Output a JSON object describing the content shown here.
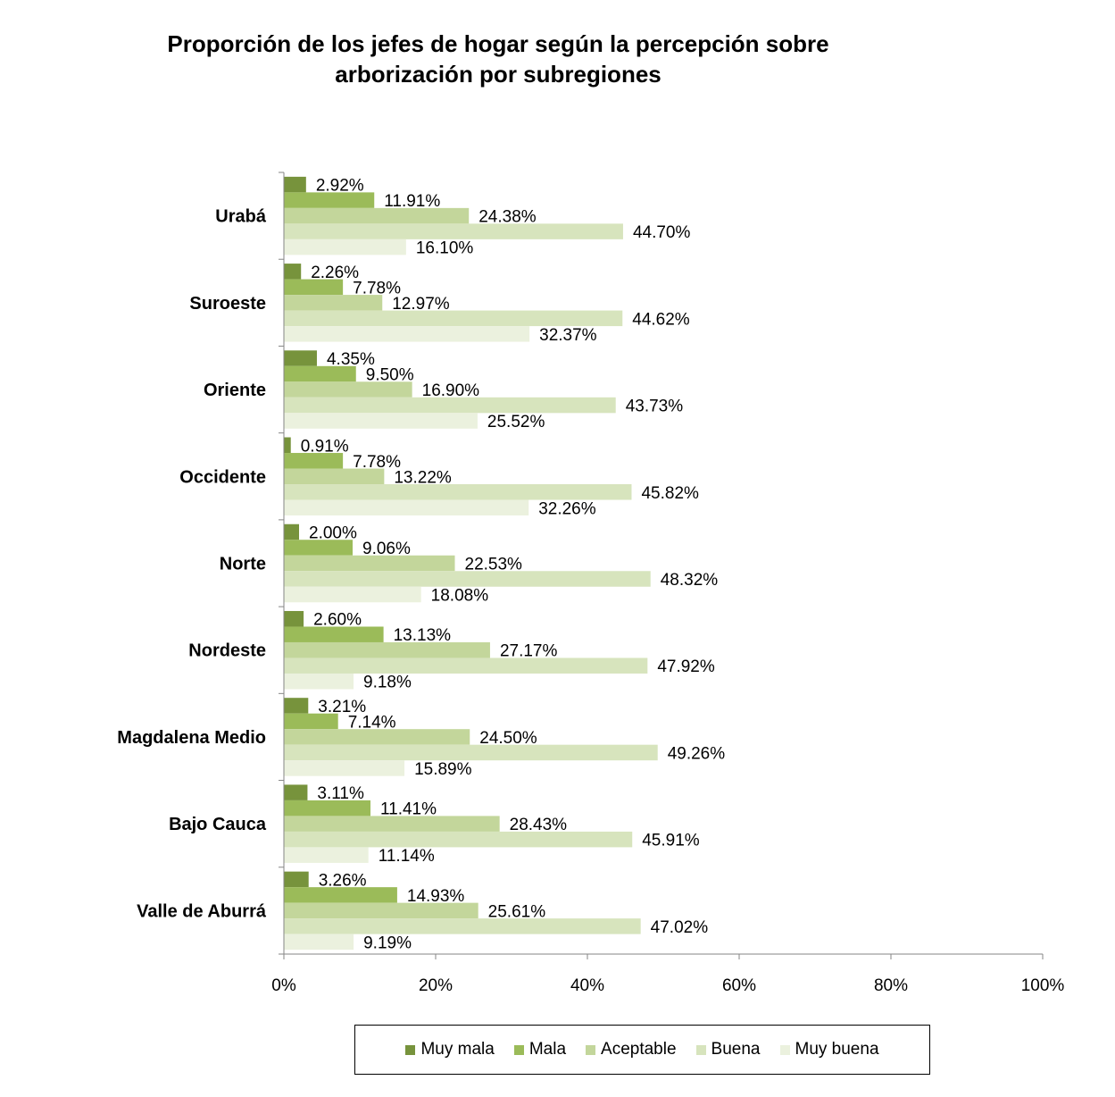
{
  "chart_data": {
    "type": "bar",
    "orientation": "horizontal",
    "title_line1": "Proporción de los jefes de  hogar según la percepción sobre",
    "title_line2": "arborización por subregiones",
    "categories": [
      "Urabá",
      "Suroeste",
      "Oriente",
      "Occidente",
      "Norte",
      "Nordeste",
      "Magdalena Medio",
      "Bajo Cauca",
      "Valle de Aburrá"
    ],
    "series": [
      {
        "name": "Muy mala",
        "color": "#77933c",
        "values": [
          2.92,
          2.26,
          4.35,
          0.91,
          2.0,
          2.6,
          3.21,
          3.11,
          3.26
        ],
        "labels": [
          "2.92%",
          "2.26%",
          "4.35%",
          "0.91%",
          "2.00%",
          "2.60%",
          "3.21%",
          "3.11%",
          "3.26%"
        ]
      },
      {
        "name": "Mala",
        "color": "#9bbb59",
        "values": [
          11.91,
          7.78,
          9.5,
          7.78,
          9.06,
          13.13,
          7.14,
          11.41,
          14.93
        ],
        "labels": [
          "11.91%",
          "7.78%",
          "9.50%",
          "7.78%",
          "9.06%",
          "13.13%",
          "7.14%",
          "11.41%",
          "14.93%"
        ]
      },
      {
        "name": "Aceptable",
        "color": "#c3d69b",
        "values": [
          24.38,
          12.97,
          16.9,
          13.22,
          22.53,
          27.17,
          24.5,
          28.43,
          25.61
        ],
        "labels": [
          "24.38%",
          "12.97%",
          "16.90%",
          "13.22%",
          "22.53%",
          "27.17%",
          "24.50%",
          "28.43%",
          "25.61%"
        ]
      },
      {
        "name": "Buena",
        "color": "#d7e4bd",
        "values": [
          44.7,
          44.62,
          43.73,
          45.82,
          48.32,
          47.92,
          49.26,
          45.91,
          47.02
        ],
        "labels": [
          "44.70%",
          "44.62%",
          "43.73%",
          "45.82%",
          "48.32%",
          "47.92%",
          "49.26%",
          "45.91%",
          "47.02%"
        ]
      },
      {
        "name": "Muy buena",
        "color": "#ebf1de",
        "values": [
          16.1,
          32.37,
          25.52,
          32.26,
          18.08,
          9.18,
          15.89,
          11.14,
          9.19
        ],
        "labels": [
          "16.10%",
          "32.37%",
          "25.52%",
          "32.26%",
          "18.08%",
          "9.18%",
          "15.89%",
          "11.14%",
          "9.19%"
        ]
      }
    ],
    "xlim": [
      0,
      100
    ],
    "x_ticks": [
      "0%",
      "20%",
      "40%",
      "60%",
      "80%",
      "100%"
    ],
    "grid": false,
    "legend_position": "bottom"
  }
}
